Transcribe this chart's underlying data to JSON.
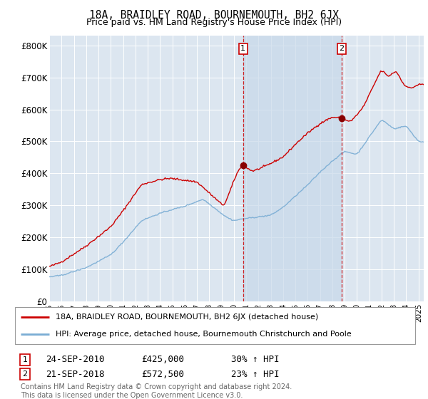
{
  "title": "18A, BRAIDLEY ROAD, BOURNEMOUTH, BH2 6JX",
  "subtitle": "Price paid vs. HM Land Registry's House Price Index (HPI)",
  "ylabel_ticks": [
    "£0",
    "£100K",
    "£200K",
    "£300K",
    "£400K",
    "£500K",
    "£600K",
    "£700K",
    "£800K"
  ],
  "ytick_vals": [
    0,
    100000,
    200000,
    300000,
    400000,
    500000,
    600000,
    700000,
    800000
  ],
  "ylim": [
    0,
    830000
  ],
  "background_color": "#ffffff",
  "plot_bg_color": "#dce6f0",
  "grid_color": "#ffffff",
  "red_line_color": "#cc0000",
  "blue_line_color": "#7aadd4",
  "shade_color": "#dce6f0",
  "marker1_year": 2010.75,
  "marker2_year": 2018.75,
  "marker1_price": 425000,
  "marker2_price": 572500,
  "legend_line1": "18A, BRAIDLEY ROAD, BOURNEMOUTH, BH2 6JX (detached house)",
  "legend_line2": "HPI: Average price, detached house, Bournemouth Christchurch and Poole",
  "footnote": "Contains HM Land Registry data © Crown copyright and database right 2024.\nThis data is licensed under the Open Government Licence v3.0."
}
